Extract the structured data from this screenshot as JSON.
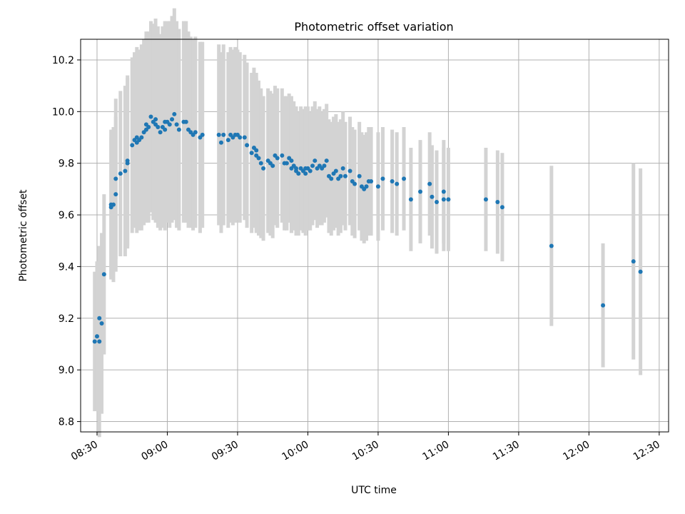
{
  "chart_data": {
    "type": "scatter",
    "title": "Photometric offset variation",
    "xlabel": "UTC time",
    "ylabel": "Photometric offset",
    "x_tick_labels": [
      "08:30",
      "09:00",
      "09:30",
      "10:00",
      "10:30",
      "11:00",
      "11:30",
      "12:00",
      "12:30"
    ],
    "y_tick_labels": [
      "8.8",
      "9.0",
      "9.2",
      "9.4",
      "9.6",
      "9.8",
      "10.0",
      "10.2"
    ],
    "xlim": [
      "08:23",
      "12:34"
    ],
    "ylim": [
      8.76,
      10.28
    ],
    "grid": true,
    "colors": {
      "points": "#1f77b4",
      "error_bars": "#d3d3d3",
      "grid": "#b0b0b0"
    },
    "series": [
      {
        "x": [
          "08:29",
          "08:30",
          "08:31",
          "08:31",
          "08:32",
          "08:33",
          "08:36",
          "08:36",
          "08:37",
          "08:38",
          "08:38",
          "08:40",
          "08:42",
          "08:43",
          "08:43",
          "08:45",
          "08:46",
          "08:47",
          "08:47",
          "08:48",
          "08:49",
          "08:50",
          "08:51",
          "08:51",
          "08:52",
          "08:53",
          "08:54",
          "08:55",
          "08:55",
          "08:56",
          "08:57",
          "08:58",
          "08:59",
          "08:59",
          "09:00",
          "09:01",
          "09:02",
          "09:03",
          "09:04",
          "09:05",
          "09:07",
          "09:08",
          "09:09",
          "09:10",
          "09:11",
          "09:12",
          "09:14",
          "09:15",
          "09:22",
          "09:23",
          "09:24",
          "09:26",
          "09:27",
          "09:28",
          "09:29",
          "09:30",
          "09:31",
          "09:33",
          "09:34",
          "09:36",
          "09:37",
          "09:38",
          "09:38",
          "09:39",
          "09:40",
          "09:41",
          "09:43",
          "09:44",
          "09:45",
          "09:46",
          "09:47",
          "09:49",
          "09:50",
          "09:51",
          "09:52",
          "09:53",
          "09:53",
          "09:54",
          "09:55",
          "09:55",
          "09:56",
          "09:57",
          "09:58",
          "09:59",
          "09:59",
          "10:00",
          "10:01",
          "10:02",
          "10:03",
          "10:04",
          "10:05",
          "10:06",
          "10:07",
          "10:08",
          "10:09",
          "10:10",
          "10:11",
          "10:12",
          "10:13",
          "10:14",
          "10:15",
          "10:16",
          "10:18",
          "10:19",
          "10:20",
          "10:22",
          "10:23",
          "10:24",
          "10:25",
          "10:26",
          "10:27",
          "10:30",
          "10:32",
          "10:36",
          "10:38",
          "10:41",
          "10:44",
          "10:48",
          "10:52",
          "10:53",
          "10:55",
          "10:58",
          "10:58",
          "11:00",
          "11:16",
          "11:21",
          "11:23",
          "11:44",
          "12:06",
          "12:19",
          "12:22"
        ],
        "y": [
          9.11,
          9.13,
          9.2,
          9.11,
          9.18,
          9.37,
          9.63,
          9.64,
          9.64,
          9.68,
          9.74,
          9.76,
          9.77,
          9.8,
          9.81,
          9.87,
          9.89,
          9.88,
          9.9,
          9.89,
          9.9,
          9.92,
          9.93,
          9.95,
          9.94,
          9.98,
          9.96,
          9.97,
          9.95,
          9.94,
          9.92,
          9.94,
          9.93,
          9.96,
          9.96,
          9.95,
          9.97,
          9.99,
          9.95,
          9.93,
          9.96,
          9.96,
          9.93,
          9.92,
          9.91,
          9.92,
          9.9,
          9.91,
          9.91,
          9.88,
          9.91,
          9.89,
          9.91,
          9.9,
          9.91,
          9.91,
          9.9,
          9.9,
          9.87,
          9.84,
          9.86,
          9.85,
          9.83,
          9.82,
          9.8,
          9.78,
          9.81,
          9.8,
          9.79,
          9.83,
          9.82,
          9.83,
          9.8,
          9.8,
          9.82,
          9.81,
          9.78,
          9.79,
          9.77,
          9.78,
          9.76,
          9.78,
          9.77,
          9.76,
          9.78,
          9.78,
          9.77,
          9.79,
          9.81,
          9.78,
          9.79,
          9.78,
          9.79,
          9.81,
          9.75,
          9.74,
          9.76,
          9.77,
          9.74,
          9.75,
          9.78,
          9.75,
          9.77,
          9.73,
          9.72,
          9.75,
          9.71,
          9.7,
          9.71,
          9.73,
          9.73,
          9.71,
          9.74,
          9.73,
          9.72,
          9.74,
          9.66,
          9.69,
          9.72,
          9.67,
          9.65,
          9.66,
          9.69,
          9.66,
          9.66,
          9.65,
          9.63,
          9.48,
          9.25,
          9.42,
          9.38
        ],
        "err": [
          0.27,
          0.29,
          0.28,
          0.37,
          0.35,
          0.31,
          0.27,
          0.29,
          0.3,
          0.3,
          0.31,
          0.32,
          0.33,
          0.33,
          0.33,
          0.34,
          0.34,
          0.35,
          0.35,
          0.35,
          0.36,
          0.36,
          0.36,
          0.36,
          0.37,
          0.37,
          0.38,
          0.39,
          0.38,
          0.39,
          0.38,
          0.39,
          0.39,
          0.39,
          0.39,
          0.4,
          0.4,
          0.41,
          0.4,
          0.39,
          0.39,
          0.39,
          0.38,
          0.37,
          0.37,
          0.37,
          0.37,
          0.36,
          0.35,
          0.35,
          0.35,
          0.34,
          0.34,
          0.34,
          0.34,
          0.33,
          0.33,
          0.32,
          0.32,
          0.31,
          0.31,
          0.3,
          0.3,
          0.3,
          0.29,
          0.28,
          0.28,
          0.28,
          0.28,
          0.27,
          0.27,
          0.26,
          0.26,
          0.26,
          0.25,
          0.25,
          0.25,
          0.25,
          0.25,
          0.24,
          0.24,
          0.24,
          0.24,
          0.24,
          0.24,
          0.24,
          0.23,
          0.23,
          0.23,
          0.23,
          0.23,
          0.22,
          0.22,
          0.22,
          0.22,
          0.22,
          0.22,
          0.22,
          0.22,
          0.22,
          0.22,
          0.21,
          0.21,
          0.21,
          0.21,
          0.21,
          0.21,
          0.21,
          0.21,
          0.21,
          0.21,
          0.21,
          0.2,
          0.2,
          0.2,
          0.2,
          0.2,
          0.2,
          0.2,
          0.2,
          0.2,
          0.2,
          0.2,
          0.2,
          0.2,
          0.2,
          0.21,
          0.31,
          0.24,
          0.38,
          0.4
        ]
      }
    ]
  }
}
